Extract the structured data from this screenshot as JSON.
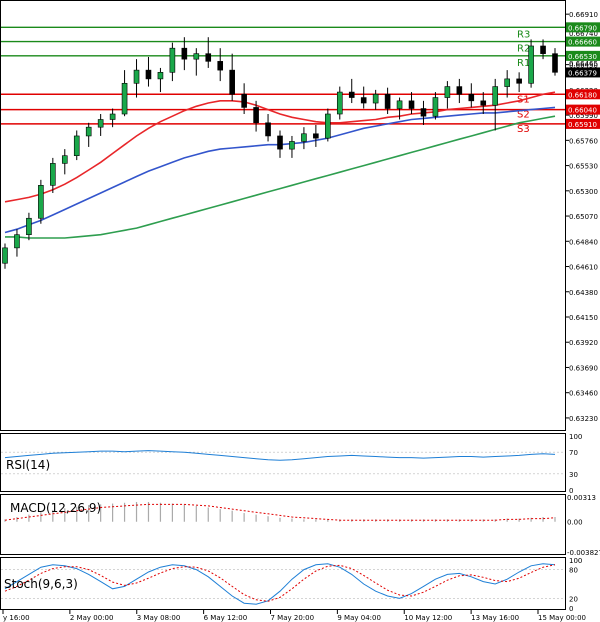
{
  "chart_data": {
    "type": "candlestick",
    "price_axis": {
      "ticks": [
        "0.66910",
        "0.66680",
        "0.66450",
        "0.66220",
        "0.65990",
        "0.65760",
        "0.65530",
        "0.65300",
        "0.65070",
        "0.64840",
        "0.64610",
        "0.64380",
        "0.64150",
        "0.63920",
        "0.63690",
        "0.63460",
        "0.63230"
      ],
      "ylim": [
        0.6312,
        0.6703
      ]
    },
    "time_labels": [
      "y 16:00",
      "2 May 00:00",
      "3 May 08:00",
      "6 May 12:00",
      "7 May 20:00",
      "9 May 04:00",
      "10 May 12:00",
      "13 May 16:00",
      "15 May 00:00"
    ],
    "candles": [
      [
        0.6464,
        0.6482,
        0.6459,
        0.6478
      ],
      [
        0.6478,
        0.6495,
        0.647,
        0.649
      ],
      [
        0.649,
        0.651,
        0.6485,
        0.6505
      ],
      [
        0.6505,
        0.654,
        0.65,
        0.6535
      ],
      [
        0.6535,
        0.656,
        0.6528,
        0.6555
      ],
      [
        0.6555,
        0.6568,
        0.6545,
        0.6562
      ],
      [
        0.6562,
        0.6585,
        0.6558,
        0.658
      ],
      [
        0.658,
        0.6592,
        0.657,
        0.6588
      ],
      [
        0.6588,
        0.66,
        0.658,
        0.6595
      ],
      [
        0.6595,
        0.6605,
        0.6588,
        0.66
      ],
      [
        0.66,
        0.664,
        0.6598,
        0.6628
      ],
      [
        0.6628,
        0.665,
        0.6615,
        0.664
      ],
      [
        0.664,
        0.6652,
        0.6625,
        0.6632
      ],
      [
        0.6632,
        0.6642,
        0.662,
        0.6638
      ],
      [
        0.6638,
        0.6665,
        0.663,
        0.666
      ],
      [
        0.666,
        0.667,
        0.664,
        0.665
      ],
      [
        0.665,
        0.666,
        0.6635,
        0.6655
      ],
      [
        0.6655,
        0.667,
        0.6642,
        0.6648
      ],
      [
        0.6648,
        0.666,
        0.663,
        0.664
      ],
      [
        0.664,
        0.6655,
        0.6612,
        0.6618
      ],
      [
        0.6618,
        0.6628,
        0.66,
        0.6606
      ],
      [
        0.6606,
        0.6612,
        0.6584,
        0.6592
      ],
      [
        0.6592,
        0.66,
        0.6575,
        0.658
      ],
      [
        0.658,
        0.6585,
        0.656,
        0.6568
      ],
      [
        0.6568,
        0.658,
        0.656,
        0.6575
      ],
      [
        0.6575,
        0.6588,
        0.6568,
        0.6582
      ],
      [
        0.6582,
        0.659,
        0.657,
        0.6578
      ],
      [
        0.6578,
        0.6605,
        0.6575,
        0.66
      ],
      [
        0.66,
        0.6625,
        0.6595,
        0.662
      ],
      [
        0.662,
        0.6632,
        0.661,
        0.6615
      ],
      [
        0.6615,
        0.6625,
        0.6605,
        0.661
      ],
      [
        0.661,
        0.6622,
        0.6604,
        0.6618
      ],
      [
        0.6618,
        0.6624,
        0.66,
        0.6605
      ],
      [
        0.6605,
        0.6615,
        0.6595,
        0.6612
      ],
      [
        0.6612,
        0.662,
        0.66,
        0.6605
      ],
      [
        0.6605,
        0.6612,
        0.659,
        0.6598
      ],
      [
        0.6598,
        0.662,
        0.6595,
        0.6615
      ],
      [
        0.6615,
        0.663,
        0.6605,
        0.6625
      ],
      [
        0.6625,
        0.6632,
        0.661,
        0.6618
      ],
      [
        0.6618,
        0.6628,
        0.6606,
        0.6612
      ],
      [
        0.6612,
        0.662,
        0.66,
        0.6608
      ],
      [
        0.6608,
        0.6632,
        0.6585,
        0.6625
      ],
      [
        0.6625,
        0.664,
        0.6615,
        0.6632
      ],
      [
        0.6632,
        0.6638,
        0.662,
        0.6628
      ],
      [
        0.6628,
        0.6668,
        0.6624,
        0.6662
      ],
      [
        0.6662,
        0.6668,
        0.665,
        0.6655
      ],
      [
        0.6655,
        0.666,
        0.6635,
        0.6638
      ]
    ],
    "moving_averages": [
      {
        "name": "red",
        "color": "#e8262a",
        "values": [
          0.652,
          0.6522,
          0.6524,
          0.6527,
          0.6531,
          0.6536,
          0.6542,
          0.6549,
          0.6556,
          0.6564,
          0.6572,
          0.658,
          0.6587,
          0.6593,
          0.6598,
          0.6603,
          0.6607,
          0.661,
          0.6612,
          0.6612,
          0.6611,
          0.6608,
          0.6604,
          0.66,
          0.6597,
          0.6595,
          0.6593,
          0.6592,
          0.6592,
          0.6593,
          0.6594,
          0.6595,
          0.6597,
          0.6598,
          0.66,
          0.6601,
          0.6602,
          0.6604,
          0.6605,
          0.6606,
          0.6607,
          0.6608,
          0.661,
          0.6612,
          0.6615,
          0.6618,
          0.662
        ]
      },
      {
        "name": "blue",
        "color": "#3355cc",
        "values": [
          0.6492,
          0.6495,
          0.6499,
          0.6503,
          0.6508,
          0.6513,
          0.6518,
          0.6523,
          0.6528,
          0.6533,
          0.6538,
          0.6543,
          0.6548,
          0.6552,
          0.6556,
          0.656,
          0.6563,
          0.6566,
          0.6568,
          0.6569,
          0.657,
          0.6571,
          0.6572,
          0.6572,
          0.6573,
          0.6574,
          0.6576,
          0.6578,
          0.6581,
          0.6584,
          0.6587,
          0.6589,
          0.6591,
          0.6593,
          0.6595,
          0.6596,
          0.6597,
          0.6598,
          0.6599,
          0.66,
          0.6601,
          0.6601,
          0.6602,
          0.6603,
          0.6604,
          0.6605,
          0.6606
        ]
      },
      {
        "name": "green",
        "color": "#2e9e4f",
        "values": [
          0.6488,
          0.6488,
          0.6487,
          0.6487,
          0.6487,
          0.6487,
          0.6488,
          0.6489,
          0.649,
          0.6492,
          0.6494,
          0.6496,
          0.6499,
          0.6502,
          0.6505,
          0.6508,
          0.6511,
          0.6514,
          0.6517,
          0.652,
          0.6523,
          0.6526,
          0.6529,
          0.6532,
          0.6535,
          0.6538,
          0.6541,
          0.6544,
          0.6547,
          0.655,
          0.6553,
          0.6556,
          0.6559,
          0.6562,
          0.6565,
          0.6568,
          0.6571,
          0.6574,
          0.6577,
          0.658,
          0.6583,
          0.6586,
          0.6589,
          0.6592,
          0.6594,
          0.6596,
          0.6598
        ]
      }
    ],
    "levels": [
      {
        "label": "R3",
        "value": 0.6679,
        "value_text": "0.66790",
        "color": "#1a8a1a"
      },
      {
        "label": "R2",
        "value": 0.6666,
        "value_text": "0.66660",
        "color": "#1a8a1a"
      },
      {
        "label": "R1",
        "value": 0.6653,
        "value_text": "0.66530",
        "color": "#1a8a1a"
      },
      {
        "label": "S1",
        "value": 0.6618,
        "value_text": "0.66180",
        "color": "#e00000"
      },
      {
        "label": "S2",
        "value": 0.6604,
        "value_text": "0.66040",
        "color": "#e00000"
      },
      {
        "label": "S3",
        "value": 0.6591,
        "value_text": "0.65910",
        "color": "#e00000"
      }
    ],
    "extra_price_labels": [
      "0.66465",
      "0.66740"
    ],
    "current_price": {
      "value": 0.66379,
      "text": "0.66379"
    },
    "rsi": {
      "label": "RSI(14)",
      "ticks": [
        "100",
        "70",
        "30",
        "0"
      ],
      "values": [
        60,
        62,
        64,
        66,
        68,
        69,
        70,
        71,
        72,
        72,
        71,
        72,
        73,
        72,
        71,
        70,
        68,
        66,
        64,
        62,
        60,
        58,
        56,
        55,
        56,
        58,
        60,
        62,
        63,
        64,
        63,
        62,
        61,
        60,
        60,
        59,
        60,
        61,
        62,
        62,
        61,
        62,
        63,
        64,
        66,
        67,
        66
      ]
    },
    "macd": {
      "label": "MACD(12,26,9)",
      "ticks": [
        "0.00313",
        "0.00",
        "-0.003827"
      ],
      "histogram": [
        0.0003,
        0.0006,
        0.0009,
        0.0012,
        0.0015,
        0.0017,
        0.0019,
        0.0021,
        0.0022,
        0.0023,
        0.0024,
        0.0025,
        0.0025,
        0.0024,
        0.0023,
        0.0022,
        0.002,
        0.0018,
        0.0016,
        0.0014,
        0.0011,
        0.0009,
        0.0007,
        0.0005,
        0.0004,
        0.0003,
        0.0003,
        0.0003,
        0.0003,
        0.0003,
        0.0003,
        0.0003,
        0.0003,
        0.0003,
        0.0003,
        0.0003,
        0.0003,
        0.0003,
        0.0003,
        0.0003,
        0.0003,
        0.0003,
        0.0004,
        0.0004,
        0.0005,
        0.0006,
        0.0006
      ],
      "signal": [
        0.0002,
        0.0004,
        0.0006,
        0.0008,
        0.001,
        0.0012,
        0.0014,
        0.0016,
        0.0018,
        0.0019,
        0.002,
        0.0021,
        0.0022,
        0.0022,
        0.0022,
        0.0022,
        0.0021,
        0.002,
        0.0018,
        0.0016,
        0.0014,
        0.0012,
        0.001,
        0.0008,
        0.0006,
        0.0005,
        0.0004,
        0.0003,
        0.0002,
        0.0002,
        0.0002,
        0.0002,
        0.0002,
        0.0002,
        0.0002,
        0.0002,
        0.0002,
        0.0002,
        0.0002,
        0.0002,
        0.0002,
        0.0002,
        0.0003,
        0.0003,
        0.0004,
        0.0004,
        0.0005
      ]
    },
    "stochastic": {
      "label": "Stoch(9,6,3)",
      "ticks": [
        "100",
        "80",
        "20",
        "0"
      ],
      "main": [
        40,
        55,
        70,
        85,
        90,
        88,
        82,
        70,
        55,
        40,
        45,
        60,
        75,
        85,
        90,
        88,
        80,
        65,
        45,
        25,
        10,
        8,
        15,
        35,
        60,
        80,
        90,
        92,
        85,
        70,
        50,
        35,
        25,
        20,
        30,
        45,
        60,
        70,
        72,
        65,
        55,
        50,
        60,
        75,
        88,
        92,
        90
      ],
      "signal": [
        35,
        45,
        58,
        72,
        82,
        86,
        86,
        80,
        68,
        54,
        47,
        52,
        62,
        73,
        82,
        86,
        85,
        77,
        63,
        45,
        28,
        17,
        14,
        22,
        40,
        60,
        77,
        87,
        89,
        82,
        68,
        52,
        37,
        27,
        25,
        33,
        45,
        58,
        67,
        69,
        64,
        57,
        55,
        62,
        74,
        85,
        90
      ]
    }
  }
}
